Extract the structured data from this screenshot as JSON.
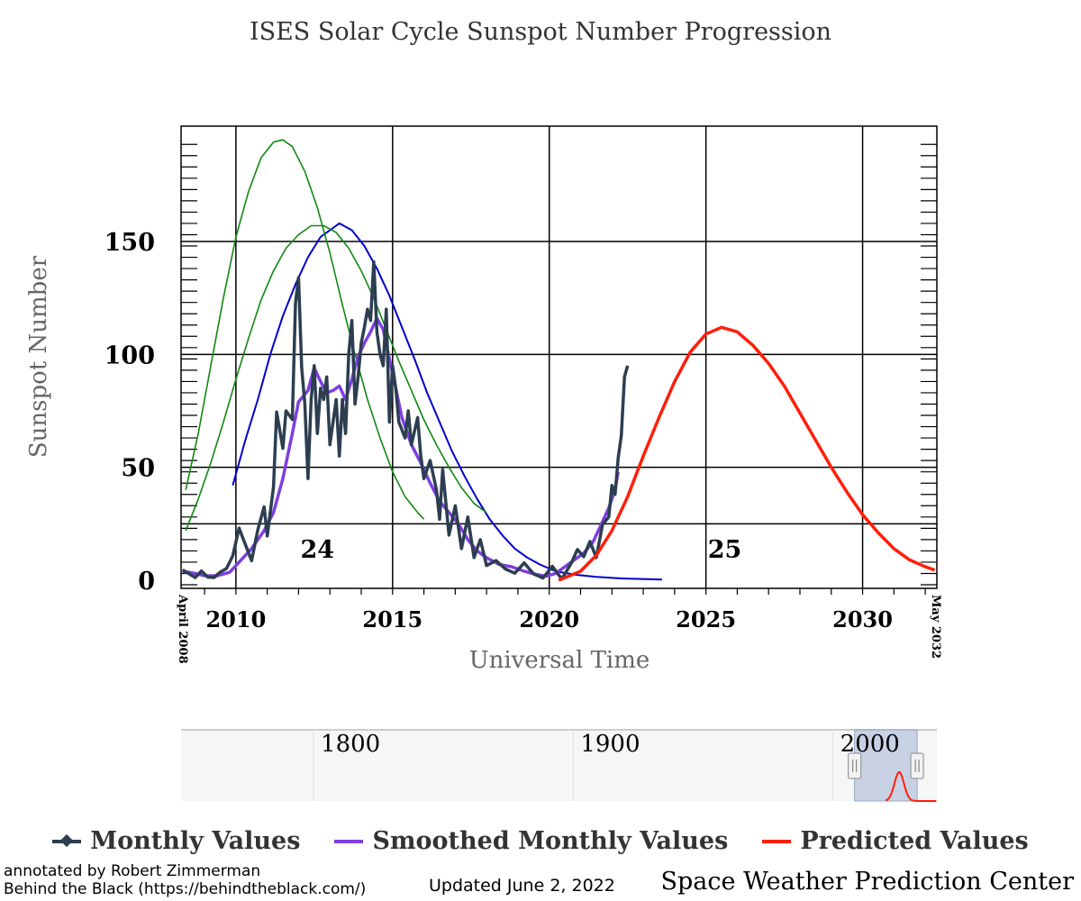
{
  "chart_data": {
    "type": "line",
    "title": "ISES Solar Cycle Sunspot Number Progression",
    "xlabel": "Universal Time",
    "ylabel": "Sunspot Number",
    "xlim": [
      "April 2008",
      "May 2032"
    ],
    "ylim": [
      0,
      195
    ],
    "x_ticks": [
      "2010",
      "2015",
      "2020",
      "2025",
      "2030"
    ],
    "y_ticks": [
      "0",
      "50",
      "100",
      "150"
    ],
    "x_edge_labels": {
      "start": "April 2008",
      "end": "May 2032"
    },
    "grid": true,
    "cycle_labels": [
      {
        "text": "24",
        "x": 2012.6,
        "y": 14
      },
      {
        "text": "25",
        "x": 2025.6,
        "y": 14
      }
    ],
    "series": [
      {
        "name": "Monthly Values",
        "color": "#2c3e50",
        "points": [
          [
            2008.3,
            4.6
          ],
          [
            2008.5,
            2.9
          ],
          [
            2008.7,
            1.2
          ],
          [
            2008.9,
            4.1
          ],
          [
            2009.1,
            1.4
          ],
          [
            2009.3,
            1.2
          ],
          [
            2009.5,
            3.6
          ],
          [
            2009.7,
            5.2
          ],
          [
            2009.9,
            10.8
          ],
          [
            2010.1,
            23.1
          ],
          [
            2010.3,
            15.9
          ],
          [
            2010.5,
            8.6
          ],
          [
            2010.7,
            22.4
          ],
          [
            2010.9,
            32.5
          ],
          [
            2011.0,
            19.6
          ],
          [
            2011.2,
            41.3
          ],
          [
            2011.3,
            74.5
          ],
          [
            2011.5,
            58.4
          ],
          [
            2011.6,
            75.0
          ],
          [
            2011.8,
            71.2
          ],
          [
            2011.9,
            122.6
          ],
          [
            2012.0,
            134.0
          ],
          [
            2012.1,
            94.0
          ],
          [
            2012.2,
            78.0
          ],
          [
            2012.3,
            45.0
          ],
          [
            2012.4,
            80.0
          ],
          [
            2012.5,
            95.0
          ],
          [
            2012.6,
            65.0
          ],
          [
            2012.7,
            85.0
          ],
          [
            2012.8,
            80.0
          ],
          [
            2012.9,
            90.0
          ],
          [
            2013.0,
            60.0
          ],
          [
            2013.1,
            70.0
          ],
          [
            2013.2,
            80.0
          ],
          [
            2013.3,
            55.0
          ],
          [
            2013.4,
            80.0
          ],
          [
            2013.5,
            65.0
          ],
          [
            2013.6,
            100.0
          ],
          [
            2013.7,
            115.0
          ],
          [
            2013.8,
            78.0
          ],
          [
            2013.9,
            90.0
          ],
          [
            2014.0,
            105.0
          ],
          [
            2014.1,
            112.0
          ],
          [
            2014.2,
            120.0
          ],
          [
            2014.3,
            115.0
          ],
          [
            2014.4,
            141.0
          ],
          [
            2014.5,
            110.0
          ],
          [
            2014.6,
            100.0
          ],
          [
            2014.7,
            95.0
          ],
          [
            2014.8,
            120.0
          ],
          [
            2014.9,
            70.0
          ],
          [
            2015.0,
            95.0
          ],
          [
            2015.1,
            85.0
          ],
          [
            2015.2,
            70.0
          ],
          [
            2015.4,
            63.0
          ],
          [
            2015.5,
            75.0
          ],
          [
            2015.6,
            60.0
          ],
          [
            2015.8,
            72.0
          ],
          [
            2015.9,
            55.0
          ],
          [
            2016.0,
            45.0
          ],
          [
            2016.2,
            53.0
          ],
          [
            2016.4,
            40.0
          ],
          [
            2016.5,
            27.0
          ],
          [
            2016.6,
            49.0
          ],
          [
            2016.8,
            20.0
          ],
          [
            2017.0,
            33.0
          ],
          [
            2017.2,
            14.0
          ],
          [
            2017.4,
            28.0
          ],
          [
            2017.6,
            10.0
          ],
          [
            2017.8,
            18.0
          ],
          [
            2018.0,
            6.5
          ],
          [
            2018.3,
            8.7
          ],
          [
            2018.6,
            5.0
          ],
          [
            2018.9,
            3.1
          ],
          [
            2019.2,
            7.7
          ],
          [
            2019.5,
            2.8
          ],
          [
            2019.8,
            1.0
          ],
          [
            2020.1,
            6.2
          ],
          [
            2020.4,
            0.5
          ],
          [
            2020.7,
            7.5
          ],
          [
            2020.9,
            13.6
          ],
          [
            2021.1,
            10.4
          ],
          [
            2021.3,
            17.2
          ],
          [
            2021.5,
            10.0
          ],
          [
            2021.7,
            24.7
          ],
          [
            2021.9,
            28.0
          ],
          [
            2022.0,
            42.0
          ],
          [
            2022.1,
            38.0
          ],
          [
            2022.2,
            54.0
          ],
          [
            2022.3,
            64.0
          ],
          [
            2022.4,
            90.0
          ],
          [
            2022.5,
            95.0
          ]
        ]
      },
      {
        "name": "Smoothed Monthly Values",
        "color": "#7e3fe0",
        "points": [
          [
            2008.3,
            4.0
          ],
          [
            2008.7,
            3.0
          ],
          [
            2009.0,
            2.0
          ],
          [
            2009.4,
            2.0
          ],
          [
            2009.8,
            3.5
          ],
          [
            2010.1,
            8.0
          ],
          [
            2010.5,
            14.0
          ],
          [
            2010.9,
            22.0
          ],
          [
            2011.2,
            30.0
          ],
          [
            2011.5,
            45.0
          ],
          [
            2011.8,
            65.0
          ],
          [
            2012.0,
            79.0
          ],
          [
            2012.3,
            84.0
          ],
          [
            2012.5,
            94.0
          ],
          [
            2012.7,
            88.0
          ],
          [
            2012.9,
            83.0
          ],
          [
            2013.1,
            84.0
          ],
          [
            2013.3,
            86.0
          ],
          [
            2013.5,
            80.0
          ],
          [
            2013.7,
            89.0
          ],
          [
            2013.9,
            99.0
          ],
          [
            2014.1,
            105.0
          ],
          [
            2014.3,
            110.0
          ],
          [
            2014.5,
            116.0
          ],
          [
            2014.7,
            111.0
          ],
          [
            2014.9,
            98.0
          ],
          [
            2015.1,
            85.0
          ],
          [
            2015.3,
            72.0
          ],
          [
            2015.6,
            60.0
          ],
          [
            2015.9,
            52.0
          ],
          [
            2016.2,
            43.0
          ],
          [
            2016.5,
            35.0
          ],
          [
            2016.8,
            30.0
          ],
          [
            2017.1,
            25.0
          ],
          [
            2017.4,
            18.0
          ],
          [
            2017.7,
            13.0
          ],
          [
            2018.0,
            10.0
          ],
          [
            2018.4,
            7.0
          ],
          [
            2018.8,
            6.0
          ],
          [
            2019.2,
            4.0
          ],
          [
            2019.6,
            2.5
          ],
          [
            2019.9,
            1.8
          ],
          [
            2020.2,
            3.0
          ],
          [
            2020.5,
            6.0
          ],
          [
            2020.8,
            9.0
          ],
          [
            2021.1,
            12.0
          ],
          [
            2021.4,
            17.0
          ],
          [
            2021.7,
            26.0
          ],
          [
            2021.9,
            32.0
          ],
          [
            2022.1,
            40.0
          ],
          [
            2022.2,
            48.0
          ]
        ]
      },
      {
        "name": "Predicted Values",
        "color": "#ff1e0a",
        "points": [
          [
            2020.3,
            0.0
          ],
          [
            2021.0,
            4.0
          ],
          [
            2021.5,
            11.0
          ],
          [
            2022.0,
            22.0
          ],
          [
            2022.5,
            37.0
          ],
          [
            2023.0,
            55.0
          ],
          [
            2023.5,
            72.0
          ],
          [
            2024.0,
            88.0
          ],
          [
            2024.5,
            101.0
          ],
          [
            2025.0,
            109.0
          ],
          [
            2025.5,
            112.0
          ],
          [
            2026.0,
            110.0
          ],
          [
            2026.5,
            104.0
          ],
          [
            2027.0,
            96.0
          ],
          [
            2027.5,
            86.0
          ],
          [
            2028.0,
            74.0
          ],
          [
            2028.5,
            62.0
          ],
          [
            2029.0,
            50.0
          ],
          [
            2029.5,
            39.0
          ],
          [
            2030.0,
            29.0
          ],
          [
            2030.5,
            21.0
          ],
          [
            2031.0,
            14.0
          ],
          [
            2031.5,
            9.0
          ],
          [
            2032.0,
            6.0
          ],
          [
            2032.3,
            4.5
          ]
        ]
      },
      {
        "color": "#0000cc",
        "points": [
          [
            2009.9,
            42.0
          ],
          [
            2010.3,
            62.0
          ],
          [
            2010.7,
            80.0
          ],
          [
            2011.1,
            100.0
          ],
          [
            2011.5,
            117.0
          ],
          [
            2011.9,
            131.0
          ],
          [
            2012.3,
            143.0
          ],
          [
            2012.7,
            152.0
          ],
          [
            2013.1,
            156.0
          ],
          [
            2013.3,
            158.0
          ],
          [
            2013.7,
            155.0
          ],
          [
            2014.1,
            148.0
          ],
          [
            2014.5,
            138.0
          ],
          [
            2014.9,
            126.0
          ],
          [
            2015.3,
            112.0
          ],
          [
            2015.7,
            98.0
          ],
          [
            2016.1,
            83.0
          ],
          [
            2016.5,
            70.0
          ],
          [
            2016.9,
            57.0
          ],
          [
            2017.3,
            46.0
          ],
          [
            2017.7,
            36.0
          ],
          [
            2018.1,
            27.0
          ],
          [
            2018.5,
            20.0
          ],
          [
            2018.9,
            14.0
          ],
          [
            2019.3,
            10.0
          ],
          [
            2019.7,
            7.0
          ],
          [
            2020.2,
            4.0
          ],
          [
            2020.8,
            2.5
          ],
          [
            2021.5,
            1.5
          ],
          [
            2022.3,
            0.8
          ],
          [
            2023.1,
            0.5
          ],
          [
            2023.6,
            0.3
          ]
        ]
      },
      {
        "color": "#118811",
        "points": [
          [
            2008.4,
            40.0
          ],
          [
            2008.8,
            65.0
          ],
          [
            2009.2,
            95.0
          ],
          [
            2009.6,
            125.0
          ],
          [
            2010.0,
            152.0
          ],
          [
            2010.4,
            172.0
          ],
          [
            2010.8,
            187.0
          ],
          [
            2011.2,
            194.0
          ],
          [
            2011.5,
            195.0
          ],
          [
            2011.8,
            192.0
          ],
          [
            2012.2,
            181.0
          ],
          [
            2012.6,
            165.0
          ],
          [
            2013.0,
            145.0
          ],
          [
            2013.4,
            122.0
          ],
          [
            2013.8,
            100.0
          ],
          [
            2014.2,
            80.0
          ],
          [
            2014.6,
            63.0
          ],
          [
            2015.0,
            48.0
          ],
          [
            2015.4,
            37.0
          ],
          [
            2015.8,
            30.0
          ],
          [
            2016.0,
            27.0
          ]
        ]
      },
      {
        "color": "#118811",
        "points": [
          [
            2008.4,
            22.0
          ],
          [
            2008.8,
            36.0
          ],
          [
            2009.2,
            52.0
          ],
          [
            2009.6,
            70.0
          ],
          [
            2010.0,
            89.0
          ],
          [
            2010.4,
            107.0
          ],
          [
            2010.8,
            124.0
          ],
          [
            2011.2,
            137.0
          ],
          [
            2011.6,
            147.0
          ],
          [
            2012.0,
            153.0
          ],
          [
            2012.4,
            157.0
          ],
          [
            2012.8,
            157.0
          ],
          [
            2013.2,
            154.0
          ],
          [
            2013.6,
            147.0
          ],
          [
            2014.0,
            137.0
          ],
          [
            2014.4,
            125.0
          ],
          [
            2014.8,
            111.0
          ],
          [
            2015.2,
            97.0
          ],
          [
            2015.6,
            84.0
          ],
          [
            2016.0,
            71.0
          ],
          [
            2016.4,
            60.0
          ],
          [
            2016.8,
            50.0
          ],
          [
            2017.2,
            41.0
          ],
          [
            2017.6,
            34.0
          ],
          [
            2018.0,
            30.0
          ]
        ]
      }
    ],
    "navigator": {
      "year_labels": [
        "1800",
        "1900",
        "2000"
      ],
      "x_range": [
        1749,
        2040
      ],
      "selection": [
        2008.3,
        2032.4
      ],
      "series_color": "#2c3e50",
      "predicted_color": "#ff1e0a"
    }
  },
  "legend": [
    {
      "label": "Monthly Values",
      "color": "#2c3e50",
      "marker": "diamond"
    },
    {
      "label": "Smoothed Monthly Values",
      "color": "#7e3fe0",
      "marker": "line"
    },
    {
      "label": "Predicted Values",
      "color": "#ff1e0a",
      "marker": "line"
    }
  ],
  "footer": {
    "annotation_line1": "annotated by Robert Zimmerman",
    "annotation_line2": "Behind the Black (https://behindtheblack.com/)",
    "updated": "Updated June 2, 2022",
    "source": "Space Weather Prediction Center"
  }
}
